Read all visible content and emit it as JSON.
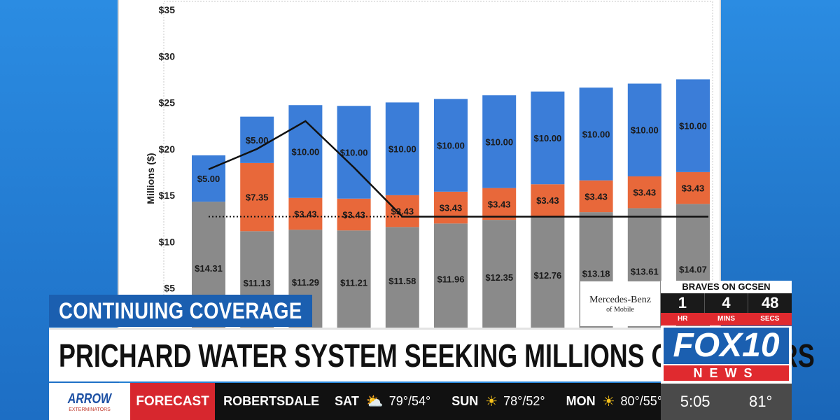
{
  "chart_data": {
    "type": "bar",
    "ylabel": "Millions ($)",
    "ylim": [
      0,
      35
    ],
    "y_ticks": [
      "$5",
      "$10",
      "$15",
      "$20",
      "$25",
      "$30",
      "$35"
    ],
    "series": [
      {
        "name": "",
        "color": "#8a8a8a",
        "values": [
          14.31,
          11.13,
          11.29,
          11.21,
          11.58,
          11.96,
          12.35,
          12.76,
          13.18,
          13.61,
          14.07
        ]
      },
      {
        "name": "",
        "color": "#e8683a",
        "values": [
          0,
          7.35,
          3.43,
          3.43,
          3.43,
          3.43,
          3.43,
          3.43,
          3.43,
          3.43,
          3.43
        ]
      },
      {
        "name": "",
        "color": "#3b7dd8",
        "values": [
          5.0,
          5.0,
          10.0,
          10.0,
          10.0,
          10.0,
          10.0,
          10.0,
          10.0,
          10.0,
          10.0
        ]
      }
    ],
    "labels": {
      "gray": [
        "$14.31",
        "$11.13",
        "$11.29",
        "$11.21",
        "$11.58",
        "$11.96",
        "$12.35",
        "$12.76",
        "$13.18",
        "$13.61",
        "$14.07"
      ],
      "orange": [
        "",
        "$7.35",
        "$3.43",
        "$3.43",
        "$3.43",
        "$3.43",
        "$3.43",
        "$3.43",
        "$3.43",
        "$3.43",
        "$3.43"
      ],
      "blue": [
        "$5.00",
        "$5.00",
        "$10.00",
        "$10.00",
        "$10.00",
        "$10.00",
        "$10.00",
        "$10.00",
        "$10.00",
        "$10.00",
        "$10.00"
      ]
    },
    "solid_line": [
      17.8,
      20.0,
      23.0,
      18.0,
      12.7,
      12.7,
      12.7,
      12.7,
      12.7,
      12.7,
      12.7
    ],
    "dotted_line_value": 12.7,
    "grid": false
  },
  "banner": {
    "label": "CONTINUING COVERAGE"
  },
  "headline": {
    "text": "PRICHARD WATER SYSTEM SEEKING MILLIONS OF DOLLARS"
  },
  "ticker": {
    "sponsor_name": "ARROW",
    "sponsor_sub": "EXTERMINATORS",
    "forecast_label": "FORECAST",
    "location": "ROBERTSDALE",
    "days": [
      {
        "day": "SAT",
        "icon": "partly-cloudy-icon",
        "temp": "79°/54°"
      },
      {
        "day": "SUN",
        "icon": "sun-icon",
        "temp": "78°/52°"
      },
      {
        "day": "MON",
        "icon": "sun-icon",
        "temp": "80°/55°"
      }
    ]
  },
  "sponsor_box": {
    "name": "Mercedes-Benz",
    "sub": "of Mobile"
  },
  "countdown": {
    "title": "BRAVES ON GCSEN",
    "values": [
      "1",
      "4",
      "48"
    ],
    "units": [
      "HR",
      "MINS",
      "SECS"
    ]
  },
  "station": {
    "name": "FOX10",
    "sub": "NEWS"
  },
  "clock": {
    "time": "5:05",
    "temp": "81°"
  }
}
